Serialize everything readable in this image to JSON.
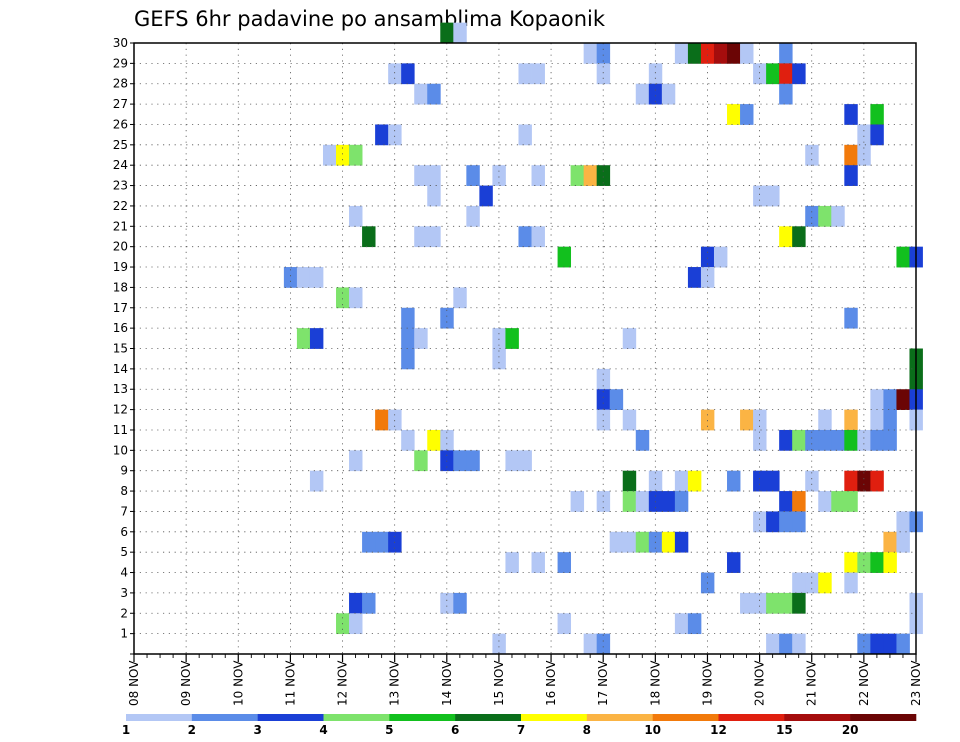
{
  "chart_data": {
    "type": "heatmap",
    "title": "GEFS 6hr padavine po ansamblima Kopaonik",
    "xlabel": "",
    "ylabel": "",
    "x_tick_labels": [
      "08 NOV",
      "09 NOV",
      "10 NOV",
      "11 NOV",
      "12 NOV",
      "13 NOV",
      "14 NOV",
      "15 NOV",
      "16 NOV",
      "17 NOV",
      "18 NOV",
      "19 NOV",
      "20 NOV",
      "21 NOV",
      "22 NOV",
      "23 NOV"
    ],
    "x_step": "6h",
    "xlim_steps": [
      0,
      60
    ],
    "y_tick_labels": [
      "1",
      "2",
      "3",
      "4",
      "5",
      "6",
      "7",
      "8",
      "9",
      "10",
      "11",
      "12",
      "13",
      "14",
      "15",
      "16",
      "17",
      "18",
      "19",
      "20",
      "21",
      "22",
      "23",
      "24",
      "25",
      "26",
      "27",
      "28",
      "29",
      "30"
    ],
    "ylim": [
      0,
      30
    ],
    "grid": true,
    "legend_position": "bottom",
    "legend": {
      "labels": [
        "1",
        "2",
        "3",
        "4",
        "5",
        "6",
        "7",
        "8",
        "10",
        "12",
        "15",
        "20"
      ],
      "colors": [
        "#b3c7f5",
        "#5b8ce8",
        "#1a3fd6",
        "#7ee36c",
        "#12c01e",
        "#0a6e1a",
        "#ffff00",
        "#fbb444",
        "#f27a0b",
        "#e01f0f",
        "#a50d0d",
        "#6b0505"
      ]
    },
    "cells": [
      [
        24,
        30,
        5
      ],
      [
        25,
        30,
        0
      ],
      [
        35,
        29,
        0
      ],
      [
        36,
        29,
        1
      ],
      [
        42,
        29,
        0
      ],
      [
        43,
        29,
        5
      ],
      [
        44,
        29,
        9
      ],
      [
        45,
        29,
        10
      ],
      [
        46,
        29,
        11
      ],
      [
        47,
        29,
        0
      ],
      [
        50,
        29,
        1
      ],
      [
        20,
        28,
        0
      ],
      [
        21,
        28,
        2
      ],
      [
        30,
        28,
        0
      ],
      [
        31,
        28,
        0
      ],
      [
        36,
        28,
        0
      ],
      [
        40,
        28,
        0
      ],
      [
        48,
        28,
        0
      ],
      [
        49,
        28,
        4
      ],
      [
        50,
        28,
        9
      ],
      [
        51,
        28,
        2
      ],
      [
        22,
        27,
        0
      ],
      [
        23,
        27,
        1
      ],
      [
        39,
        27,
        0
      ],
      [
        40,
        27,
        2
      ],
      [
        41,
        27,
        0
      ],
      [
        50,
        27,
        1
      ],
      [
        46,
        26,
        6
      ],
      [
        47,
        26,
        1
      ],
      [
        55,
        26,
        2
      ],
      [
        57,
        26,
        4
      ],
      [
        19,
        25,
        2
      ],
      [
        20,
        25,
        0
      ],
      [
        30,
        25,
        0
      ],
      [
        56,
        25,
        0
      ],
      [
        57,
        25,
        2
      ],
      [
        15,
        24,
        0
      ],
      [
        16,
        24,
        6
      ],
      [
        17,
        24,
        3
      ],
      [
        52,
        24,
        0
      ],
      [
        55,
        24,
        8
      ],
      [
        56,
        24,
        0
      ],
      [
        22,
        23,
        0
      ],
      [
        23,
        23,
        0
      ],
      [
        26,
        23,
        1
      ],
      [
        28,
        23,
        0
      ],
      [
        31,
        23,
        0
      ],
      [
        34,
        23,
        3
      ],
      [
        35,
        23,
        7
      ],
      [
        36,
        23,
        5
      ],
      [
        55,
        23,
        2
      ],
      [
        23,
        22,
        0
      ],
      [
        27,
        22,
        2
      ],
      [
        48,
        22,
        0
      ],
      [
        49,
        22,
        0
      ],
      [
        17,
        21,
        0
      ],
      [
        26,
        21,
        0
      ],
      [
        52,
        21,
        1
      ],
      [
        53,
        21,
        3
      ],
      [
        54,
        21,
        0
      ],
      [
        18,
        20,
        5
      ],
      [
        22,
        20,
        0
      ],
      [
        23,
        20,
        0
      ],
      [
        30,
        20,
        1
      ],
      [
        31,
        20,
        0
      ],
      [
        50,
        20,
        6
      ],
      [
        51,
        20,
        5
      ],
      [
        33,
        19,
        4
      ],
      [
        44,
        19,
        2
      ],
      [
        45,
        19,
        0
      ],
      [
        59,
        19,
        4
      ],
      [
        60,
        19,
        2
      ],
      [
        12,
        18,
        1
      ],
      [
        13,
        18,
        0
      ],
      [
        14,
        18,
        0
      ],
      [
        43,
        18,
        2
      ],
      [
        44,
        18,
        0
      ],
      [
        16,
        17,
        3
      ],
      [
        17,
        17,
        0
      ],
      [
        25,
        17,
        0
      ],
      [
        21,
        16,
        1
      ],
      [
        24,
        16,
        1
      ],
      [
        55,
        16,
        1
      ],
      [
        21,
        15,
        1
      ],
      [
        22,
        15,
        0
      ],
      [
        13,
        15,
        3
      ],
      [
        14,
        15,
        2
      ],
      [
        28,
        15,
        0
      ],
      [
        29,
        15,
        4
      ],
      [
        38,
        15,
        0
      ],
      [
        21,
        14,
        1
      ],
      [
        28,
        14,
        0
      ],
      [
        60,
        14,
        5
      ],
      [
        36,
        13,
        0
      ],
      [
        60,
        13,
        5
      ],
      [
        36,
        12,
        2
      ],
      [
        37,
        12,
        1
      ],
      [
        57,
        12,
        0
      ],
      [
        58,
        12,
        1
      ],
      [
        59,
        12,
        11
      ],
      [
        60,
        12,
        2
      ],
      [
        19,
        11,
        8
      ],
      [
        20,
        11,
        0
      ],
      [
        36,
        11,
        0
      ],
      [
        38,
        11,
        0
      ],
      [
        44,
        11,
        7
      ],
      [
        47,
        11,
        7
      ],
      [
        48,
        11,
        0
      ],
      [
        53,
        11,
        0
      ],
      [
        55,
        11,
        7
      ],
      [
        57,
        11,
        0
      ],
      [
        58,
        11,
        1
      ],
      [
        60,
        11,
        0
      ],
      [
        21,
        10,
        0
      ],
      [
        23,
        10,
        6
      ],
      [
        24,
        10,
        0
      ],
      [
        39,
        10,
        1
      ],
      [
        48,
        10,
        0
      ],
      [
        50,
        10,
        2
      ],
      [
        51,
        10,
        3
      ],
      [
        52,
        10,
        1
      ],
      [
        53,
        10,
        1
      ],
      [
        54,
        10,
        1
      ],
      [
        55,
        10,
        4
      ],
      [
        56,
        10,
        0
      ],
      [
        57,
        10,
        1
      ],
      [
        58,
        10,
        1
      ],
      [
        17,
        9,
        0
      ],
      [
        22,
        9,
        3
      ],
      [
        24,
        9,
        2
      ],
      [
        25,
        9,
        1
      ],
      [
        26,
        9,
        1
      ],
      [
        29,
        9,
        0
      ],
      [
        30,
        9,
        0
      ],
      [
        14,
        8,
        0
      ],
      [
        38,
        8,
        5
      ],
      [
        40,
        8,
        0
      ],
      [
        42,
        8,
        0
      ],
      [
        43,
        8,
        6
      ],
      [
        46,
        8,
        1
      ],
      [
        48,
        8,
        2
      ],
      [
        49,
        8,
        2
      ],
      [
        52,
        8,
        0
      ],
      [
        55,
        8,
        9
      ],
      [
        56,
        8,
        11
      ],
      [
        57,
        8,
        9
      ],
      [
        34,
        7,
        0
      ],
      [
        36,
        7,
        0
      ],
      [
        38,
        7,
        3
      ],
      [
        39,
        7,
        0
      ],
      [
        40,
        7,
        2
      ],
      [
        41,
        7,
        2
      ],
      [
        42,
        7,
        1
      ],
      [
        50,
        7,
        2
      ],
      [
        51,
        7,
        8
      ],
      [
        53,
        7,
        0
      ],
      [
        54,
        7,
        3
      ],
      [
        55,
        7,
        3
      ],
      [
        48,
        6,
        0
      ],
      [
        49,
        6,
        2
      ],
      [
        50,
        6,
        1
      ],
      [
        51,
        6,
        1
      ],
      [
        59,
        6,
        0
      ],
      [
        60,
        6,
        1
      ],
      [
        18,
        5,
        1
      ],
      [
        19,
        5,
        1
      ],
      [
        20,
        5,
        2
      ],
      [
        37,
        5,
        0
      ],
      [
        38,
        5,
        0
      ],
      [
        39,
        5,
        3
      ],
      [
        40,
        5,
        1
      ],
      [
        41,
        5,
        6
      ],
      [
        42,
        5,
        2
      ],
      [
        58,
        5,
        7
      ],
      [
        59,
        5,
        0
      ],
      [
        29,
        4,
        0
      ],
      [
        31,
        4,
        0
      ],
      [
        33,
        4,
        1
      ],
      [
        46,
        4,
        2
      ],
      [
        55,
        4,
        6
      ],
      [
        56,
        4,
        3
      ],
      [
        57,
        4,
        4
      ],
      [
        58,
        4,
        6
      ],
      [
        44,
        3,
        1
      ],
      [
        51,
        3,
        0
      ],
      [
        52,
        3,
        0
      ],
      [
        53,
        3,
        6
      ],
      [
        55,
        3,
        0
      ],
      [
        17,
        2,
        2
      ],
      [
        18,
        2,
        1
      ],
      [
        24,
        2,
        0
      ],
      [
        25,
        2,
        1
      ],
      [
        47,
        2,
        0
      ],
      [
        48,
        2,
        0
      ],
      [
        49,
        2,
        3
      ],
      [
        50,
        2,
        3
      ],
      [
        51,
        2,
        5
      ],
      [
        60,
        2,
        0
      ],
      [
        16,
        1,
        3
      ],
      [
        17,
        1,
        0
      ],
      [
        33,
        1,
        0
      ],
      [
        42,
        1,
        0
      ],
      [
        43,
        1,
        1
      ],
      [
        60,
        1,
        0
      ],
      [
        28,
        0,
        0
      ],
      [
        35,
        0,
        0
      ],
      [
        36,
        0,
        1
      ],
      [
        49,
        0,
        0
      ],
      [
        50,
        0,
        1
      ],
      [
        51,
        0,
        0
      ],
      [
        56,
        0,
        1
      ],
      [
        57,
        0,
        2
      ],
      [
        58,
        0,
        2
      ],
      [
        59,
        0,
        1
      ]
    ]
  }
}
